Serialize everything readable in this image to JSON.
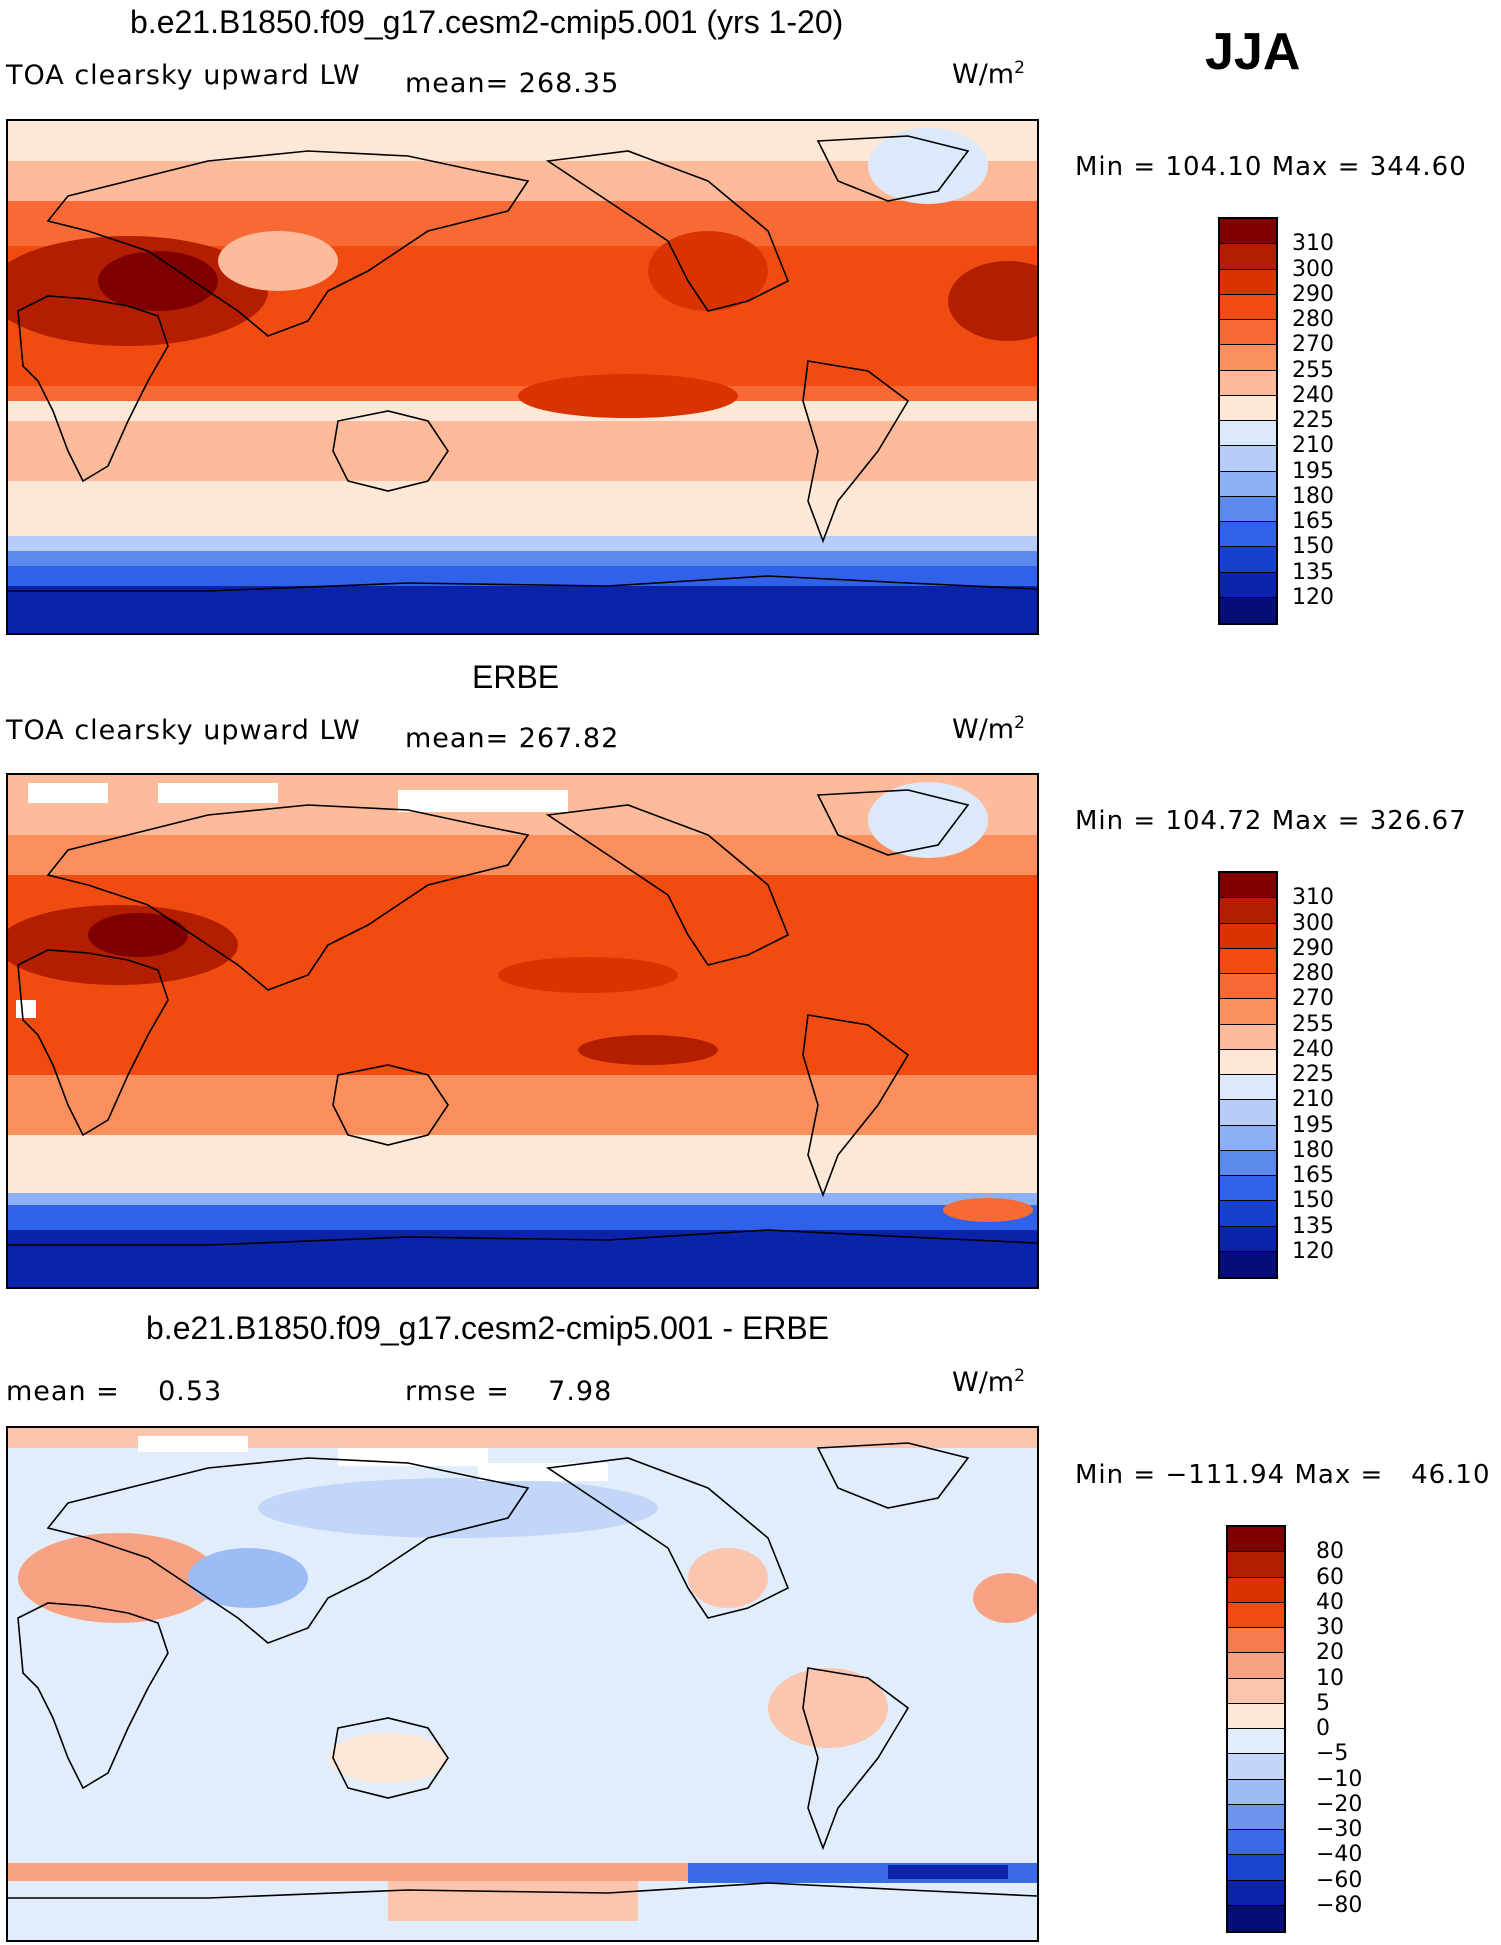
{
  "season": "JJA",
  "panels": [
    {
      "title": "b.e21.B1850.f09_g17.cesm2-cmip5.001 (yrs 1-20)",
      "variable": "TOA clearsky upward LW",
      "stat_left": "mean= 268.35",
      "stat_right": "",
      "units": "W/m",
      "units_exp": "2",
      "minmax": "Min = 104.10 Max = 344.60",
      "colorbar": {
        "labels": [
          "310",
          "300",
          "290",
          "280",
          "270",
          "255",
          "240",
          "225",
          "210",
          "195",
          "180",
          "165",
          "150",
          "135",
          "120"
        ],
        "colors": [
          "#7f0000",
          "#b31d00",
          "#d93300",
          "#f04c12",
          "#f76a35",
          "#fb8f5e",
          "#fdbb9b",
          "#fde7d6",
          "#dce9fb",
          "#b5cdf8",
          "#8db0f5",
          "#5c89ee",
          "#2f62e8",
          "#1540d0",
          "#0a23a8",
          "#050e78"
        ]
      },
      "map": {
        "features": [
          "tropical-warm-band",
          "saharan-hotspot",
          "southwest-us-hotspot",
          "antarctic-cold-band",
          "greenland-cool"
        ]
      }
    },
    {
      "title": "ERBE",
      "variable": "TOA clearsky upward LW",
      "stat_left": "mean= 267.82",
      "stat_right": "",
      "units": "W/m",
      "units_exp": "2",
      "minmax": "Min = 104.72 Max = 326.67",
      "colorbar": {
        "labels": [
          "310",
          "300",
          "290",
          "280",
          "270",
          "255",
          "240",
          "225",
          "210",
          "195",
          "180",
          "165",
          "150",
          "135",
          "120"
        ],
        "colors": [
          "#7f0000",
          "#b31d00",
          "#d93300",
          "#f04c12",
          "#f76a35",
          "#fb8f5e",
          "#fdbb9b",
          "#fde7d6",
          "#dce9fb",
          "#b5cdf8",
          "#8db0f5",
          "#5c89ee",
          "#2f62e8",
          "#1540d0",
          "#0a23a8",
          "#050e78"
        ]
      },
      "map": {
        "features": [
          "tropical-warm-band",
          "missing-data-arctic",
          "antarctic-cold-band",
          "south-atlantic-warm-patch"
        ]
      }
    },
    {
      "title": "b.e21.B1850.f09_g17.cesm2-cmip5.001 - ERBE",
      "variable": "",
      "stat_left": "mean =    0.53",
      "stat_right": "rmse =    7.98",
      "units": "W/m",
      "units_exp": "2",
      "minmax": "Min = −111.94 Max =   46.10",
      "colorbar": {
        "labels": [
          "80",
          "60",
          "40",
          "30",
          "20",
          "10",
          "5",
          "0",
          "−5",
          "−10",
          "−20",
          "−30",
          "−40",
          "−60",
          "−80"
        ],
        "colors": [
          "#7f0000",
          "#b31d00",
          "#d93300",
          "#f04c12",
          "#f57a4e",
          "#f9a183",
          "#fcc5ad",
          "#fde7d6",
          "#e2edfc",
          "#c2d6f9",
          "#9bbcf5",
          "#6d95ee",
          "#3b6ae6",
          "#1a44d0",
          "#0a23a8",
          "#050e78"
        ]
      },
      "map": {
        "features": [
          "mostly-light-blue-bias",
          "north-africa-positive",
          "southern-ocean-positive-band",
          "south-atlantic-negative"
        ]
      }
    }
  ]
}
